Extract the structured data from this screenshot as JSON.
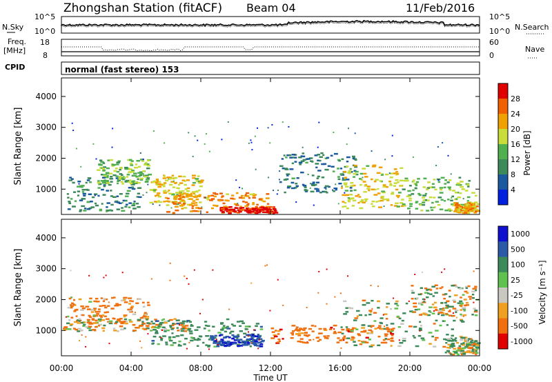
{
  "header": {
    "station": "Zhongshan Station (fitACF)",
    "beam": "Beam 04",
    "date": "11/Feb/2016"
  },
  "top_panels": {
    "nsky_label": "N.Sky",
    "nsky_ticks": [
      "10^5",
      "10^0"
    ],
    "nsearch_label": "N.Search",
    "nsearch_ticks": [
      "10^5",
      "10^0"
    ],
    "freq_label_1": "Freq.",
    "freq_label_2": "[MHz]",
    "freq_ticks": [
      "18",
      "8"
    ],
    "nave_label": "Nave",
    "nave_ticks": [
      "60",
      "0"
    ],
    "cpid_label": "CPID",
    "cpid_text": "normal (fast stereo) 153"
  },
  "axes": {
    "ylabel": "Slant Range [km]",
    "yticks": [
      "4000",
      "3000",
      "2000",
      "1000"
    ],
    "xticks": [
      "00:00",
      "04:00",
      "08:00",
      "12:00",
      "16:00",
      "20:00",
      "00:00"
    ],
    "xlabel": "Time UT"
  },
  "power_scale": {
    "title": "Power [dB]",
    "labels": [
      "28",
      "24",
      "20",
      "16",
      "12",
      "8",
      "4"
    ],
    "colors": [
      "#e00000",
      "#f06000",
      "#f0a000",
      "#c8dc3a",
      "#50b050",
      "#3c8a5a",
      "#1c5aa0",
      "#0020e0"
    ]
  },
  "velocity_scale": {
    "title": "Velocity [m s⁻¹]",
    "labels": [
      "1000",
      "500",
      "100",
      "25",
      "-25",
      "-100",
      "-500",
      "-1000"
    ],
    "colors": [
      "#1010d0",
      "#2a5aa8",
      "#3c8a5a",
      "#60c050",
      "#c8c8c0",
      "#f0a020",
      "#f07010",
      "#e00000"
    ]
  },
  "chart_data": [
    {
      "type": "heatmap",
      "title": "Power [dB]",
      "ylabel": "Slant Range [km]",
      "xlabel": "Time UT",
      "x_range": [
        "00:00",
        "24:00"
      ],
      "ylim": [
        180,
        4600
      ],
      "colorbar_range": [
        0,
        30
      ],
      "regions": [
        {
          "x": [
            0.3,
            4.5
          ],
          "y": [
            300,
            1500
          ],
          "value": 9
        },
        {
          "x": [
            2.0,
            5.0
          ],
          "y": [
            1200,
            2000
          ],
          "value": 14
        },
        {
          "x": [
            5.0,
            8.0
          ],
          "y": [
            500,
            1500
          ],
          "value": 18
        },
        {
          "x": [
            6.0,
            12.0
          ],
          "y": [
            250,
            900
          ],
          "value": 22
        },
        {
          "x": [
            9.0,
            12.3
          ],
          "y": [
            200,
            450
          ],
          "value": 28
        },
        {
          "x": [
            12.5,
            17.0
          ],
          "y": [
            900,
            2200
          ],
          "value": 8
        },
        {
          "x": [
            16.0,
            19.5
          ],
          "y": [
            400,
            1800
          ],
          "value": 18
        },
        {
          "x": [
            19.5,
            24.0
          ],
          "y": [
            300,
            1400
          ],
          "value": 14
        },
        {
          "x": [
            22.5,
            24.0
          ],
          "y": [
            200,
            600
          ],
          "value": 20
        }
      ]
    },
    {
      "type": "heatmap",
      "title": "Velocity [m s⁻¹]",
      "ylabel": "Slant Range [km]",
      "xlabel": "Time UT",
      "x_range": [
        "00:00",
        "24:00"
      ],
      "ylim": [
        180,
        4600
      ],
      "colorbar_range": [
        -1000,
        1000
      ],
      "regions": [
        {
          "x": [
            0.3,
            5.0
          ],
          "y": [
            1200,
            2100
          ],
          "value": -200
        },
        {
          "x": [
            0.0,
            7.5
          ],
          "y": [
            1000,
            1400
          ],
          "value": 0
        },
        {
          "x": [
            5.0,
            11.5
          ],
          "y": [
            500,
            1400
          ],
          "value": 300
        },
        {
          "x": [
            8.5,
            11.5
          ],
          "y": [
            500,
            900
          ],
          "value": 900
        },
        {
          "x": [
            12.0,
            19.0
          ],
          "y": [
            600,
            1200
          ],
          "value": -300
        },
        {
          "x": [
            16.0,
            23.0
          ],
          "y": [
            500,
            2000
          ],
          "value": 100
        },
        {
          "x": [
            20.0,
            24.0
          ],
          "y": [
            1500,
            2500
          ],
          "value": 0
        },
        {
          "x": [
            22.0,
            24.0
          ],
          "y": [
            250,
            800
          ],
          "value": 50
        }
      ]
    }
  ]
}
